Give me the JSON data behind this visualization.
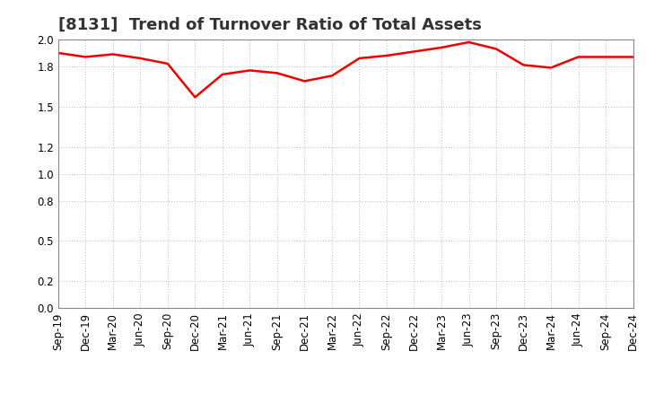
{
  "title": "[8131]  Trend of Turnover Ratio of Total Assets",
  "x_labels": [
    "Sep-19",
    "Dec-19",
    "Mar-20",
    "Jun-20",
    "Sep-20",
    "Dec-20",
    "Mar-21",
    "Jun-21",
    "Sep-21",
    "Dec-21",
    "Mar-22",
    "Jun-22",
    "Sep-22",
    "Dec-22",
    "Mar-23",
    "Jun-23",
    "Sep-23",
    "Dec-23",
    "Mar-24",
    "Jun-24",
    "Sep-24",
    "Dec-24"
  ],
  "values": [
    1.9,
    1.87,
    1.89,
    1.86,
    1.82,
    1.57,
    1.74,
    1.77,
    1.75,
    1.69,
    1.73,
    1.86,
    1.88,
    1.91,
    1.94,
    1.98,
    1.93,
    1.81,
    1.79,
    1.87,
    1.87,
    1.87
  ],
  "line_color": "#EE0000",
  "line_width": 1.8,
  "ylim": [
    0.0,
    2.0
  ],
  "yticks": [
    0.0,
    0.2,
    0.5,
    0.8,
    1.0,
    1.2,
    1.5,
    1.8,
    2.0
  ],
  "grid_color": "#BBBBBB",
  "background_color": "#FFFFFF",
  "title_fontsize": 13,
  "tick_fontsize": 8.5
}
